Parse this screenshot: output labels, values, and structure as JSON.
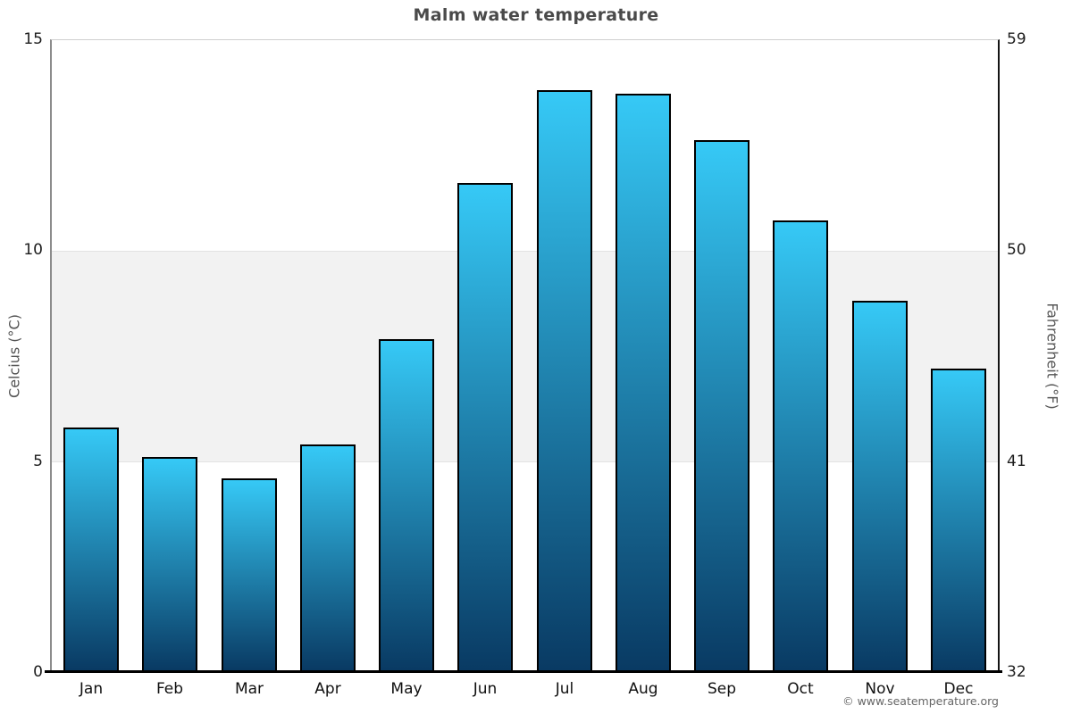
{
  "title": "Malm water temperature",
  "copyright": "© www.seatemperature.org",
  "chart_data": {
    "type": "bar",
    "title": "Malm water temperature",
    "categories": [
      "Jan",
      "Feb",
      "Mar",
      "Apr",
      "May",
      "Jun",
      "Jul",
      "Aug",
      "Sep",
      "Oct",
      "Nov",
      "Dec"
    ],
    "series": [
      {
        "name": "Water temperature (°C)",
        "values": [
          5.8,
          5.1,
          4.6,
          5.4,
          7.9,
          11.6,
          13.8,
          13.7,
          12.6,
          10.7,
          8.8,
          7.2
        ]
      }
    ],
    "ylabel_left": "Celcius (°C)",
    "ylabel_right": "Fahrenheit (°F)",
    "ylim": [
      0,
      15
    ],
    "yticks": [
      {
        "celsius": "15",
        "fahrenheit": "59"
      },
      {
        "celsius": "10",
        "fahrenheit": "50"
      },
      {
        "celsius": "5",
        "fahrenheit": "41"
      },
      {
        "celsius": "0",
        "fahrenheit": "32"
      }
    ],
    "band": {
      "from": 5,
      "to": 10,
      "color": "#f2f2f2"
    },
    "grid": "band between 5 and 10 only, top gridline at 15",
    "legend": "none",
    "colors": {
      "bar_top": "#36c9f6",
      "bar_bottom": "#093a63",
      "bar_border": "#000000",
      "band": "#f2f2f2",
      "title_text": "#4a4a4a"
    }
  }
}
